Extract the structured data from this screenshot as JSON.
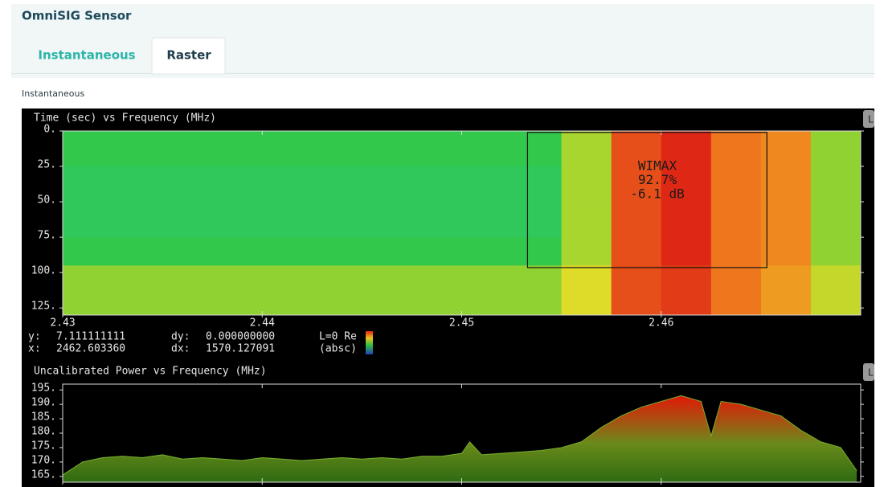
{
  "header": {
    "title": "OmniSIG Sensor"
  },
  "tabs": [
    "Instantaneous",
    "Raster"
  ],
  "section_label": "Instantaneous",
  "plot_button": "L",
  "chart_data": [
    {
      "type": "heatmap",
      "title": "Time (sec) vs Frequency (MHz)",
      "x_bins": [
        2.43,
        2.4325,
        2.435,
        2.4375,
        2.44,
        2.4425,
        2.445,
        2.4475,
        2.45,
        2.4525,
        2.455,
        2.4575,
        2.46,
        2.4625,
        2.465,
        2.4675,
        2.47
      ],
      "y_bins": [
        0,
        25,
        50,
        75,
        95,
        130
      ],
      "values": [
        [
          171,
          171,
          171,
          171,
          171,
          171,
          171,
          171,
          171,
          171,
          176,
          186,
          188,
          184,
          183,
          175
        ],
        [
          170.5,
          170.5,
          170.5,
          170.5,
          170.5,
          170.5,
          170.5,
          170.5,
          170.5,
          170.5,
          176,
          186,
          188,
          184,
          183,
          175
        ],
        [
          170.5,
          170.5,
          170.5,
          170.5,
          170.5,
          170.5,
          170.5,
          170.5,
          170.5,
          170.5,
          176,
          186,
          188,
          184,
          183,
          175
        ],
        [
          171,
          171,
          171,
          171,
          171,
          171,
          171,
          171,
          171,
          171,
          176,
          186,
          188,
          184,
          183,
          175
        ],
        [
          175,
          175,
          175,
          175,
          175,
          175,
          175,
          175,
          175,
          175,
          178,
          186,
          187,
          184,
          182,
          177
        ]
      ],
      "xlim": [
        2.43,
        2.47
      ],
      "ylim": [
        0,
        130
      ],
      "y_inverted": true,
      "xticks": [
        2.43,
        2.44,
        2.45,
        2.46
      ],
      "yticks": [
        {
          "value": 0,
          "label": "0."
        },
        {
          "value": 25,
          "label": "25."
        },
        {
          "value": 50,
          "label": "50."
        },
        {
          "value": 75,
          "label": "75."
        },
        {
          "value": 100,
          "label": "100."
        },
        {
          "value": 125,
          "label": "125."
        }
      ],
      "annotation": {
        "x": [
          2.4533,
          2.4653
        ],
        "y": [
          1,
          96.5
        ],
        "text": [
          "WIMAX",
          "92.7%",
          "-6.1 dB"
        ]
      },
      "readout": {
        "y_label": "y:",
        "y": "7.111111111",
        "dy_label": "dy:",
        "dy": "0.000000000",
        "x_label": "x:",
        "x": "2462.603360",
        "dx_label": "dx:",
        "dx": "1570.127091",
        "legend": [
          "L=0 Re",
          "(absc)"
        ]
      }
    },
    {
      "type": "area",
      "title": "Uncalibrated Power vs Frequency (MHz)",
      "x": [
        2.43,
        2.431,
        2.432,
        2.433,
        2.434,
        2.435,
        2.436,
        2.437,
        2.438,
        2.439,
        2.44,
        2.441,
        2.442,
        2.443,
        2.444,
        2.445,
        2.446,
        2.447,
        2.448,
        2.449,
        2.45,
        2.4504,
        2.451,
        2.452,
        2.453,
        2.454,
        2.455,
        2.456,
        2.457,
        2.458,
        2.459,
        2.46,
        2.461,
        2.462,
        2.4625,
        2.463,
        2.464,
        2.465,
        2.466,
        2.467,
        2.468,
        2.469,
        2.4698
      ],
      "values": [
        165.5,
        170,
        171.5,
        172,
        171.5,
        172.5,
        171,
        171.5,
        171,
        170.5,
        171.5,
        171,
        170.5,
        171,
        171.5,
        171,
        171.5,
        171,
        172,
        172,
        173,
        177,
        172.5,
        173,
        173.5,
        174,
        175,
        177,
        182,
        186,
        189,
        191,
        193,
        191,
        179,
        191,
        190,
        188,
        186,
        181,
        177,
        175,
        167
      ],
      "xlim": [
        2.43,
        2.47
      ],
      "ylim": [
        163,
        197
      ],
      "xticks": [
        2.43,
        2.44,
        2.45,
        2.46
      ],
      "yticks": [
        {
          "value": 165,
          "label": "165."
        },
        {
          "value": 170,
          "label": "170."
        },
        {
          "value": 175,
          "label": "175."
        },
        {
          "value": 180,
          "label": "180."
        },
        {
          "value": 185,
          "label": "185."
        },
        {
          "value": 190,
          "label": "190."
        },
        {
          "value": 195,
          "label": "195."
        }
      ]
    }
  ]
}
